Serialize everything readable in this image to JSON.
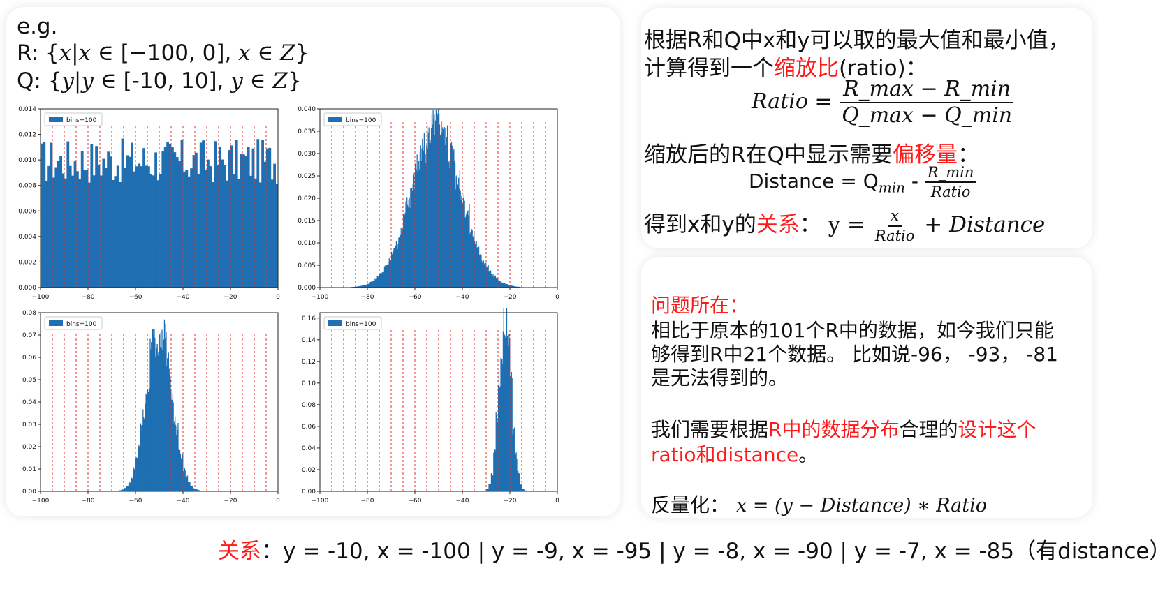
{
  "left": {
    "eg": "e.g.",
    "r_set": {
      "prefix": "R: {",
      "expr": "x|x ∈ ",
      "range": "[−100, 0], ",
      "expr2": "x ∈ Z",
      "suffix": "}"
    },
    "q_set": {
      "prefix": "Q: {",
      "expr": "y|y ∈ ",
      "range": "[-10, 10], ",
      "expr2": "y ∈ Z",
      "suffix": "}"
    }
  },
  "right_top": {
    "line1": "根据R和Q中x和y可以取的最大值和最小值，",
    "line2_a": "计算得到一个",
    "line2_red": "缩放比",
    "line2_b": "(ratio)：",
    "ratio_lhs": "Ratio =",
    "ratio_num": "R_max − R_min",
    "ratio_den": "Q_max − Q_min",
    "line3_a": "缩放后的R在Q中显示需要",
    "line3_red": "偏移量",
    "line3_b": "：",
    "dist_lhs": "Distance = Q",
    "dist_sub": "min",
    "dist_minus": " - ",
    "dist_num": "R_min",
    "dist_den": "Ratio",
    "line4_a": "得到x和y的",
    "line4_red": "关系",
    "line4_b": "：",
    "rel_lhs": "y =",
    "rel_num": "x",
    "rel_den": "Ratio",
    "rel_rhs": "+ Distance"
  },
  "right_bottom": {
    "title": "问题所在：",
    "p1_l1": "相比于原本的101个R中的数据，如今我们只能",
    "p1_l2": "够得到R中21个数据。 比如说-96， -93， -81",
    "p1_l3": "是无法得到的。",
    "p2_a": "我们需要根据",
    "p2_red1": "R中的数据分布",
    "p2_b": "合理的",
    "p2_red2": "设计这个",
    "p2_red3": "ratio和distance",
    "p2_c": "。",
    "deq_label": "反量化：",
    "deq_expr": "x = (y − Distance) ∗ Ratio"
  },
  "bottom": {
    "red": "关系",
    "text": "：y = -10, x = -100 | y = -9, x = -95 | y = -8, x = -90 | y = -7, x = -85（有distance）"
  },
  "colors": {
    "bar": "#1f6fb2",
    "ref_line": "#e03030",
    "accent": "#ff1a1a"
  },
  "chart_data": [
    {
      "type": "bar",
      "id": "uniform",
      "legend": "bins=100",
      "legend_position": "top-left",
      "xlim": [
        -100,
        0
      ],
      "ylim": [
        0,
        0.014
      ],
      "xticks": [
        -100,
        -80,
        -60,
        -40,
        -20,
        0
      ],
      "xtick_labels": [
        "−100",
        "−80",
        "−60",
        "−40",
        "−20",
        "0"
      ],
      "yticks": [
        0,
        0.002,
        0.004,
        0.006,
        0.008,
        0.01,
        0.012,
        0.014
      ],
      "ytick_labels": [
        "0.000",
        "0.002",
        "0.004",
        "0.006",
        "0.008",
        "0.010",
        "0.012",
        "0.014"
      ],
      "distribution": {
        "kind": "uniform",
        "level": 0.0099
      },
      "ref_lines": [
        -95,
        -90,
        -85,
        -80,
        -75,
        -70,
        -65,
        -60,
        -55,
        -50,
        -45,
        -40,
        -35,
        -30,
        -25,
        -20,
        -15,
        -10,
        -5
      ],
      "ref_height": 0.0127
    },
    {
      "type": "bar",
      "id": "normal_wide",
      "legend": "bins=100",
      "legend_position": "top-left",
      "xlim": [
        -100,
        0
      ],
      "ylim": [
        0,
        0.04
      ],
      "xticks": [
        -100,
        -80,
        -60,
        -40,
        -20,
        0
      ],
      "xtick_labels": [
        "−100",
        "−80",
        "−60",
        "−40",
        "−20",
        "0"
      ],
      "yticks": [
        0,
        0.005,
        0.01,
        0.015,
        0.02,
        0.025,
        0.03,
        0.035,
        0.04
      ],
      "ytick_labels": [
        "0.000",
        "0.005",
        "0.010",
        "0.015",
        "0.020",
        "0.025",
        "0.030",
        "0.035",
        "0.040"
      ],
      "distribution": {
        "kind": "normal",
        "mean": -51,
        "sd": 10.5,
        "peak": 0.037,
        "min_x": -92,
        "max_x": -16
      },
      "ref_lines": [
        -95,
        -90,
        -85,
        -80,
        -75,
        -70,
        -65,
        -60,
        -55,
        -50,
        -45,
        -40,
        -35,
        -30,
        -25,
        -20,
        -15,
        -10,
        -5
      ],
      "ref_height": 0.037
    },
    {
      "type": "bar",
      "id": "normal_mid",
      "legend": "bins=100",
      "legend_position": "top-left",
      "xlim": [
        -100,
        0
      ],
      "ylim": [
        0,
        0.08
      ],
      "xticks": [
        -100,
        -80,
        -60,
        -40,
        -20,
        0
      ],
      "xtick_labels": [
        "−100",
        "−80",
        "−60",
        "−40",
        "−20",
        "0"
      ],
      "yticks": [
        0,
        0.01,
        0.02,
        0.03,
        0.04,
        0.05,
        0.06,
        0.07,
        0.08
      ],
      "ytick_labels": [
        "0.00",
        "0.01",
        "0.02",
        "0.03",
        "0.04",
        "0.05",
        "0.06",
        "0.07",
        "0.08"
      ],
      "distribution": {
        "kind": "normal",
        "mean": -50,
        "sd": 5.2,
        "peak": 0.076,
        "min_x": -67,
        "max_x": -32
      },
      "ref_lines": [
        -95,
        -90,
        -85,
        -80,
        -75,
        -70,
        -65,
        -60,
        -55,
        -50,
        -45,
        -40,
        -35,
        -30,
        -25,
        -20,
        -15,
        -10,
        -5
      ],
      "ref_height": 0.071
    },
    {
      "type": "bar",
      "id": "normal_narrow",
      "legend": "bins=100",
      "legend_position": "top-left",
      "xlim": [
        -100,
        0
      ],
      "ylim": [
        0,
        0.165
      ],
      "xticks": [
        -100,
        -80,
        -60,
        -40,
        -20,
        0
      ],
      "xtick_labels": [
        "−100",
        "−80",
        "−60",
        "−40",
        "−20",
        "0"
      ],
      "yticks": [
        0,
        0.02,
        0.04,
        0.06,
        0.08,
        0.1,
        0.12,
        0.14,
        0.16
      ],
      "ytick_labels": [
        "0.00",
        "0.02",
        "0.04",
        "0.06",
        "0.08",
        "0.10",
        "0.12",
        "0.14",
        "0.16"
      ],
      "distribution": {
        "kind": "normal",
        "mean": -22,
        "sd": 2.6,
        "peak": 0.16,
        "min_x": -32,
        "max_x": -13
      },
      "ref_lines": [
        -95,
        -90,
        -85,
        -80,
        -75,
        -70,
        -65,
        -60,
        -55,
        -50,
        -45,
        -40,
        -35,
        -30,
        -25,
        -20,
        -15,
        -10,
        -5
      ],
      "ref_height": 0.149
    }
  ]
}
